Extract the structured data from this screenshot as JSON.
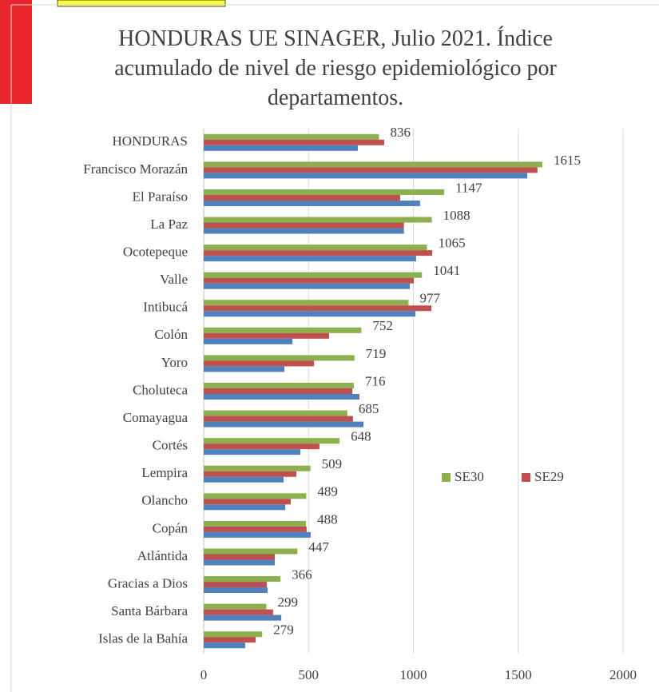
{
  "chart_data": {
    "type": "hbar",
    "title": "HONDURAS UE SINAGER, Julio 2021.  Índice acumulado de nivel de riesgo epidemiológico por departamentos.",
    "categories": [
      "HONDURAS",
      "Francisco Morazán",
      "El Paraíso",
      "La Paz",
      "Ocotepeque",
      "Valle",
      "Intibucá",
      "Colón",
      "Yoro",
      "Choluteca",
      "Comayagua",
      "Cortés",
      "Lempira",
      "Olancho",
      "Copán",
      "Atlántida",
      "Gracias a Dios",
      "Santa Bárbara",
      "Islas de la Bahía"
    ],
    "series": [
      {
        "name": "SE30",
        "color": "#8cb050",
        "values": [
          836,
          1615,
          1147,
          1088,
          1065,
          1041,
          977,
          752,
          719,
          716,
          685,
          648,
          509,
          489,
          488,
          447,
          366,
          299,
          279
        ],
        "labels": true
      },
      {
        "name": "SE29",
        "color": "#c0504d",
        "values": [
          861,
          1592,
          937,
          955,
          1090,
          1002,
          1086,
          598,
          526,
          709,
          712,
          552,
          442,
          415,
          491,
          339,
          301,
          331,
          248
        ]
      },
      {
        "color": "#4f81bd",
        "values": [
          735,
          1543,
          1032,
          955,
          1013,
          983,
          1010,
          423,
          385,
          743,
          762,
          461,
          381,
          389,
          510,
          339,
          305,
          370,
          198
        ]
      }
    ],
    "xlim": [
      0,
      2000
    ],
    "xticks": [
      0,
      500,
      1000,
      1500,
      2000
    ],
    "grid": true
  }
}
